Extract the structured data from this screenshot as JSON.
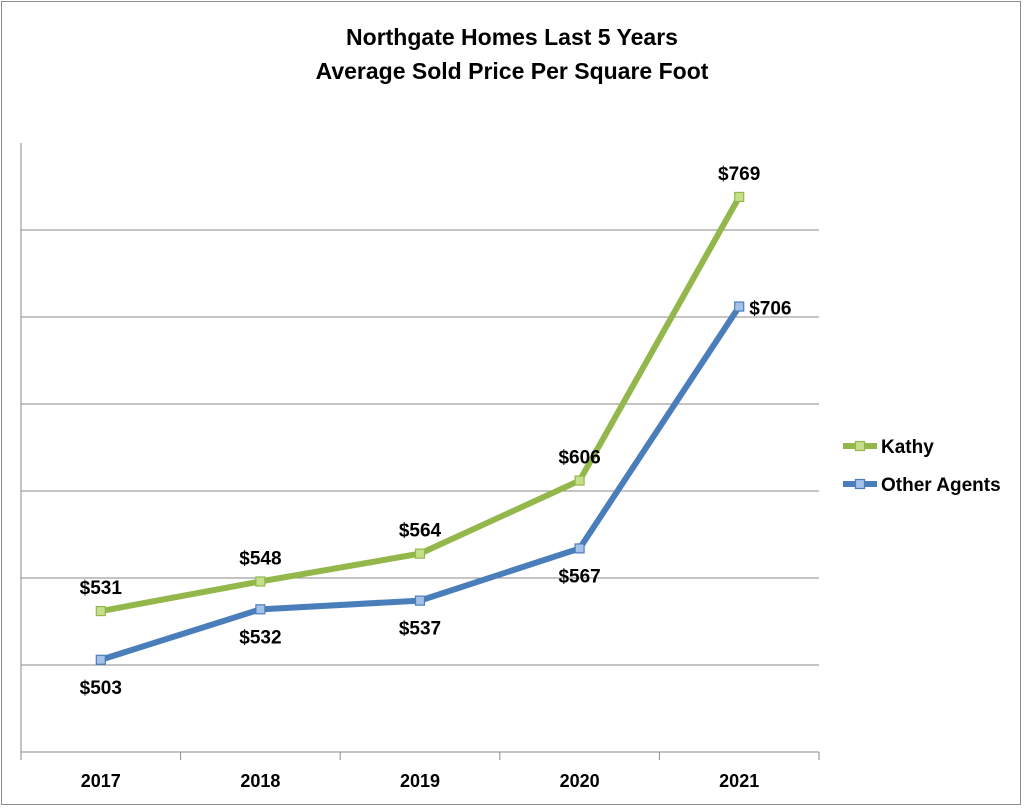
{
  "chart_data": {
    "type": "line",
    "title": [
      "Northgate Homes Last 5 Years",
      "Average Sold Price Per Square Foot"
    ],
    "categories": [
      "2017",
      "2018",
      "2019",
      "2020",
      "2021"
    ],
    "series": [
      {
        "name": "Kathy",
        "values": [
          531,
          548,
          564,
          606,
          769
        ],
        "labels": [
          "$531",
          "$548",
          "$564",
          "$606",
          "$769"
        ],
        "label_position": [
          "above",
          "above",
          "above",
          "above",
          "above"
        ],
        "color": "#93b74b",
        "marker_fill": "#c6df8a"
      },
      {
        "name": "Other Agents",
        "values": [
          503,
          532,
          537,
          567,
          706
        ],
        "labels": [
          "$503",
          "$532",
          "$537",
          "$567",
          "$706"
        ],
        "label_position": [
          "below",
          "below",
          "below",
          "below",
          "right"
        ],
        "color": "#4a7ebb",
        "marker_fill": "#a4c1e8"
      }
    ],
    "ylim": [
      450,
      800
    ],
    "y_gridlines": [
      500,
      550,
      600,
      650,
      700,
      750
    ],
    "grid": true,
    "y_tick_labels_visible": false,
    "legend": "right"
  }
}
